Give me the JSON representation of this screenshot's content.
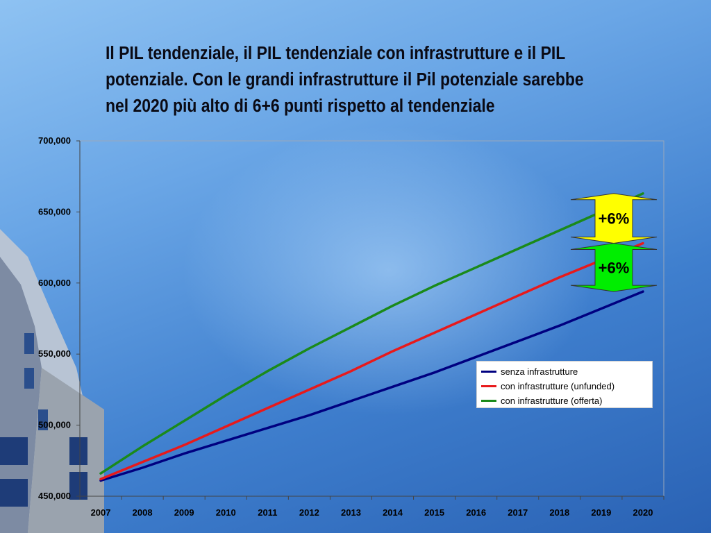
{
  "slide": {
    "title": "Il PIL tendenziale, il PIL tendenziale con infrastrutture e il PIL potenziale. Con le grandi infrastrutture il Pil potenziale sarebbe nel 2020 più alto di 6+6 punti rispetto al tendenziale"
  },
  "chart_data": {
    "type": "line",
    "title": "",
    "xlabel": "",
    "ylabel": "",
    "categories": [
      "2007",
      "2008",
      "2009",
      "2010",
      "2011",
      "2012",
      "2013",
      "2014",
      "2015",
      "2016",
      "2017",
      "2018",
      "2019",
      "2020"
    ],
    "ylim": [
      450000,
      700000
    ],
    "yticks": [
      450000,
      500000,
      550000,
      600000,
      650000,
      700000
    ],
    "ytick_labels": [
      "450,000",
      "500,000",
      "550,000",
      "600,000",
      "650,000",
      "700,000"
    ],
    "grid": false,
    "legend_position": "right",
    "series": [
      {
        "name": "senza infrastrutture",
        "color": "#000080",
        "values": [
          461000,
          470000,
          480000,
          489000,
          498000,
          507000,
          517000,
          527000,
          537000,
          548000,
          559000,
          570000,
          582000,
          594000
        ]
      },
      {
        "name": "con infrastrutture (unfunded)",
        "color": "#e8191b",
        "values": [
          462000,
          474000,
          486000,
          499000,
          512000,
          525000,
          538000,
          552000,
          565000,
          578000,
          591000,
          604000,
          616000,
          628000
        ]
      },
      {
        "name": "con infrastrutture (offerta)",
        "color": "#1a8a1a",
        "values": [
          466000,
          485000,
          503000,
          521000,
          538000,
          554000,
          569000,
          584000,
          598000,
          611000,
          624000,
          637000,
          650000,
          663000
        ]
      }
    ],
    "annotations": [
      {
        "label": "+6%",
        "color": "#ffff00",
        "from": 628000,
        "to": 663000
      },
      {
        "label": "+6%",
        "color": "#00ee00",
        "from": 594000,
        "to": 628000
      }
    ]
  }
}
